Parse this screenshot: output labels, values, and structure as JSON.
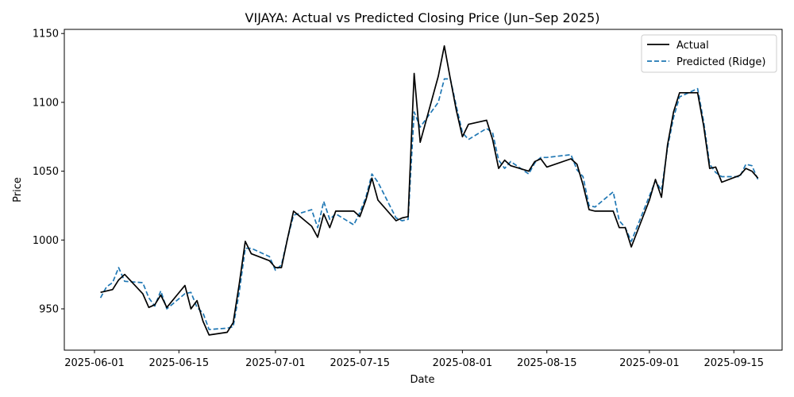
{
  "chart_data": {
    "type": "line",
    "title": "VIJAYA: Actual vs Predicted Closing Price (Jun–Sep 2025)",
    "xlabel": "Date",
    "ylabel": "Price",
    "x_ticks": [
      "2025-06-01",
      "2025-06-15",
      "2025-07-01",
      "2025-07-15",
      "2025-08-01",
      "2025-08-15",
      "2025-09-01",
      "2025-09-15"
    ],
    "y_ticks": [
      950,
      1000,
      1050,
      1100,
      1150
    ],
    "xlim": [
      "2025-05-27",
      "2025-09-23"
    ],
    "ylim": [
      920,
      1153
    ],
    "grid": false,
    "legend_position": "top-right",
    "series": [
      {
        "name": "Actual",
        "color": "#000000",
        "style": "solid",
        "points": [
          [
            "2025-06-02",
            962
          ],
          [
            "2025-06-04",
            964
          ],
          [
            "2025-06-05",
            971
          ],
          [
            "2025-06-06",
            975
          ],
          [
            "2025-06-09",
            961
          ],
          [
            "2025-06-10",
            951
          ],
          [
            "2025-06-11",
            953
          ],
          [
            "2025-06-12",
            960
          ],
          [
            "2025-06-13",
            951
          ],
          [
            "2025-06-16",
            967
          ],
          [
            "2025-06-17",
            950
          ],
          [
            "2025-06-18",
            956
          ],
          [
            "2025-06-19",
            941
          ],
          [
            "2025-06-20",
            931
          ],
          [
            "2025-06-23",
            933
          ],
          [
            "2025-06-24",
            940
          ],
          [
            "2025-06-25",
            968
          ],
          [
            "2025-06-26",
            999
          ],
          [
            "2025-06-27",
            990
          ],
          [
            "2025-06-30",
            985
          ],
          [
            "2025-07-01",
            980
          ],
          [
            "2025-07-02",
            980
          ],
          [
            "2025-07-03",
            1001
          ],
          [
            "2025-07-04",
            1021
          ],
          [
            "2025-07-07",
            1010
          ],
          [
            "2025-07-08",
            1002
          ],
          [
            "2025-07-09",
            1019
          ],
          [
            "2025-07-10",
            1009
          ],
          [
            "2025-07-11",
            1021
          ],
          [
            "2025-07-14",
            1021
          ],
          [
            "2025-07-15",
            1017
          ],
          [
            "2025-07-16",
            1029
          ],
          [
            "2025-07-17",
            1045
          ],
          [
            "2025-07-18",
            1029
          ],
          [
            "2025-07-21",
            1014
          ],
          [
            "2025-07-22",
            1016
          ],
          [
            "2025-07-23",
            1017
          ],
          [
            "2025-07-24",
            1121
          ],
          [
            "2025-07-25",
            1071
          ],
          [
            "2025-07-28",
            1119
          ],
          [
            "2025-07-29",
            1141
          ],
          [
            "2025-07-30",
            1117
          ],
          [
            "2025-07-31",
            1094
          ],
          [
            "2025-08-01",
            1075
          ],
          [
            "2025-08-02",
            1084
          ],
          [
            "2025-08-05",
            1087
          ],
          [
            "2025-08-06",
            1073
          ],
          [
            "2025-08-07",
            1052
          ],
          [
            "2025-08-08",
            1058
          ],
          [
            "2025-08-09",
            1054
          ],
          [
            "2025-08-12",
            1050
          ],
          [
            "2025-08-13",
            1057
          ],
          [
            "2025-08-14",
            1059
          ],
          [
            "2025-08-15",
            1053
          ],
          [
            "2025-08-19",
            1059
          ],
          [
            "2025-08-20",
            1055
          ],
          [
            "2025-08-21",
            1040
          ],
          [
            "2025-08-22",
            1022
          ],
          [
            "2025-08-23",
            1021
          ],
          [
            "2025-08-26",
            1021
          ],
          [
            "2025-08-27",
            1009
          ],
          [
            "2025-08-28",
            1009
          ],
          [
            "2025-08-29",
            995
          ],
          [
            "2025-09-01",
            1029
          ],
          [
            "2025-09-02",
            1044
          ],
          [
            "2025-09-03",
            1031
          ],
          [
            "2025-09-04",
            1069
          ],
          [
            "2025-09-05",
            1093
          ],
          [
            "2025-09-06",
            1107
          ],
          [
            "2025-09-09",
            1107
          ],
          [
            "2025-09-10",
            1083
          ],
          [
            "2025-09-11",
            1052
          ],
          [
            "2025-09-12",
            1053
          ],
          [
            "2025-09-13",
            1042
          ],
          [
            "2025-09-16",
            1047
          ],
          [
            "2025-09-17",
            1052
          ],
          [
            "2025-09-18",
            1050
          ],
          [
            "2025-09-19",
            1045
          ]
        ]
      },
      {
        "name": "Predicted (Ridge)",
        "color": "#1f77b4",
        "style": "dashed",
        "points": [
          [
            "2025-06-02",
            958
          ],
          [
            "2025-06-03",
            966
          ],
          [
            "2025-06-04",
            969
          ],
          [
            "2025-06-05",
            980
          ],
          [
            "2025-06-06",
            970
          ],
          [
            "2025-06-09",
            969
          ],
          [
            "2025-06-10",
            958
          ],
          [
            "2025-06-11",
            952
          ],
          [
            "2025-06-12",
            963
          ],
          [
            "2025-06-13",
            950
          ],
          [
            "2025-06-16",
            961
          ],
          [
            "2025-06-17",
            962
          ],
          [
            "2025-06-18",
            951
          ],
          [
            "2025-06-19",
            947
          ],
          [
            "2025-06-20",
            935
          ],
          [
            "2025-06-23",
            936
          ],
          [
            "2025-06-24",
            937
          ],
          [
            "2025-06-25",
            962
          ],
          [
            "2025-06-26",
            994
          ],
          [
            "2025-06-27",
            994
          ],
          [
            "2025-06-30",
            988
          ],
          [
            "2025-07-01",
            978
          ],
          [
            "2025-07-02",
            982
          ],
          [
            "2025-07-03",
            1001
          ],
          [
            "2025-07-04",
            1018
          ],
          [
            "2025-07-07",
            1022
          ],
          [
            "2025-07-08",
            1009
          ],
          [
            "2025-07-09",
            1028
          ],
          [
            "2025-07-10",
            1015
          ],
          [
            "2025-07-11",
            1019
          ],
          [
            "2025-07-14",
            1011
          ],
          [
            "2025-07-15",
            1020
          ],
          [
            "2025-07-16",
            1031
          ],
          [
            "2025-07-17",
            1048
          ],
          [
            "2025-07-18",
            1042
          ],
          [
            "2025-07-21",
            1016
          ],
          [
            "2025-07-22",
            1014
          ],
          [
            "2025-07-23",
            1015
          ],
          [
            "2025-07-24",
            1093
          ],
          [
            "2025-07-25",
            1082
          ],
          [
            "2025-07-28",
            1100
          ],
          [
            "2025-07-29",
            1117
          ],
          [
            "2025-07-30",
            1117
          ],
          [
            "2025-07-31",
            1097
          ],
          [
            "2025-08-01",
            1078
          ],
          [
            "2025-08-02",
            1073
          ],
          [
            "2025-08-05",
            1081
          ],
          [
            "2025-08-06",
            1078
          ],
          [
            "2025-08-07",
            1058
          ],
          [
            "2025-08-08",
            1052
          ],
          [
            "2025-08-09",
            1057
          ],
          [
            "2025-08-12",
            1048
          ],
          [
            "2025-08-13",
            1056
          ],
          [
            "2025-08-14",
            1060
          ],
          [
            "2025-08-15",
            1060
          ],
          [
            "2025-08-19",
            1062
          ],
          [
            "2025-08-20",
            1051
          ],
          [
            "2025-08-21",
            1046
          ],
          [
            "2025-08-22",
            1025
          ],
          [
            "2025-08-23",
            1024
          ],
          [
            "2025-08-26",
            1035
          ],
          [
            "2025-08-27",
            1014
          ],
          [
            "2025-08-28",
            1009
          ],
          [
            "2025-08-29",
            999
          ],
          [
            "2025-09-01",
            1032
          ],
          [
            "2025-09-02",
            1043
          ],
          [
            "2025-09-03",
            1036
          ],
          [
            "2025-09-04",
            1067
          ],
          [
            "2025-09-05",
            1089
          ],
          [
            "2025-09-06",
            1104
          ],
          [
            "2025-09-09",
            1110
          ],
          [
            "2025-09-10",
            1086
          ],
          [
            "2025-09-11",
            1055
          ],
          [
            "2025-09-12",
            1049
          ],
          [
            "2025-09-13",
            1046
          ],
          [
            "2025-09-16",
            1046
          ],
          [
            "2025-09-17",
            1055
          ],
          [
            "2025-09-18",
            1054
          ],
          [
            "2025-09-19",
            1044
          ]
        ]
      }
    ]
  }
}
